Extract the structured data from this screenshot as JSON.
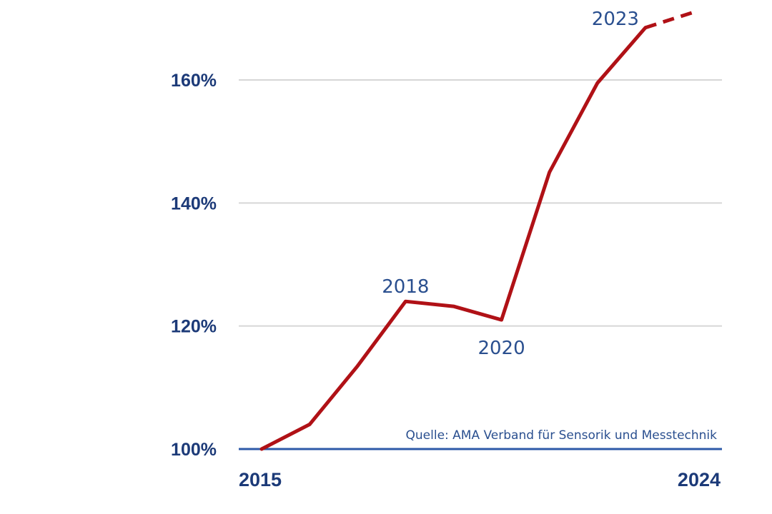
{
  "chart_data": {
    "type": "line",
    "x": [
      2015,
      2016,
      2017,
      2018,
      2019,
      2020,
      2021,
      2022,
      2023,
      2024
    ],
    "series": [
      {
        "values": [
          100,
          104,
          113.5,
          124,
          123.2,
          121,
          145,
          159.5,
          168.5,
          171
        ],
        "projected_from_index": 8,
        "color": "#b01116"
      }
    ],
    "yticks": [
      {
        "value": 100,
        "label": "100%"
      },
      {
        "value": 120,
        "label": "120%"
      },
      {
        "value": 140,
        "label": "140%"
      },
      {
        "value": 160,
        "label": "160%"
      }
    ],
    "xticks": [
      {
        "value": 2015,
        "label": "2015"
      },
      {
        "value": 2024,
        "label": "2024"
      }
    ],
    "annotations": [
      {
        "x": 2018,
        "label": "2018",
        "position": "above"
      },
      {
        "x": 2020,
        "label": "2020",
        "position": "below"
      },
      {
        "x": 2023,
        "label": "2023",
        "position": "above"
      }
    ],
    "source": "Quelle: AMA Verband für Sensorik und Messtechnik",
    "ylim": [
      100,
      172
    ],
    "xlim": [
      2015,
      2024
    ],
    "grid": true,
    "colors": {
      "line": "#b01116",
      "axis": "#2e5aa8",
      "grid": "#d6d6d6",
      "label": "#1c3a78",
      "annotation": "#2a4f8f"
    }
  }
}
